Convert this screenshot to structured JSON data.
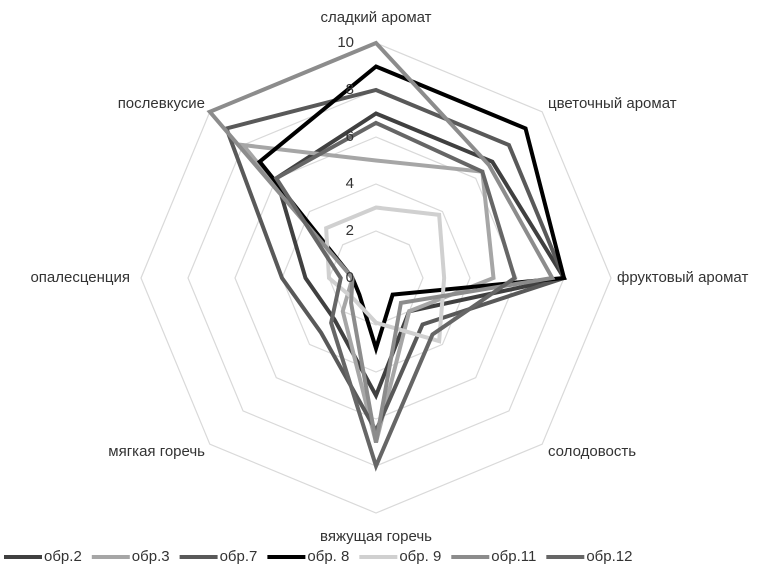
{
  "chart_data": {
    "type": "radar",
    "categories": [
      "сладкий аромат",
      "цветочный аромат",
      "фруктовый аромат",
      "солодовость",
      "вяжущая горечь",
      "мягкая горечь",
      "опалесценция",
      "послевкусие"
    ],
    "ylim": [
      0,
      10
    ],
    "yticks": [
      0,
      2,
      4,
      6,
      8,
      10
    ],
    "grid": true,
    "legend": "bottom",
    "series": [
      {
        "name": "обр.2",
        "color": "#404040",
        "values": [
          7,
          7,
          8,
          2,
          5,
          2.5,
          3,
          6
        ]
      },
      {
        "name": "обр.3",
        "color": "#a6a6a6",
        "values": [
          5,
          6.4,
          5,
          2,
          7,
          2,
          1,
          8
        ]
      },
      {
        "name": "обр.7",
        "color": "#595959",
        "values": [
          8,
          8,
          8,
          2.8,
          6.5,
          3.3,
          4,
          9
        ]
      },
      {
        "name": "обр. 8",
        "color": "#000000",
        "values": [
          9,
          9,
          8,
          1,
          3,
          1,
          1,
          7
        ]
      },
      {
        "name": "обр. 9",
        "color": "#d0d0d0",
        "values": [
          3,
          3.8,
          2.9,
          3.8,
          1.9,
          1.3,
          2,
          3
        ]
      },
      {
        "name": "обр.11",
        "color": "#8c8c8c",
        "values": [
          10,
          6.8,
          7.5,
          1.5,
          7,
          1.5,
          1,
          10
        ]
      },
      {
        "name": "обр.12",
        "color": "#666666",
        "values": [
          6.6,
          6.4,
          5.9,
          3.4,
          8,
          2.7,
          1.5,
          6
        ]
      }
    ]
  }
}
